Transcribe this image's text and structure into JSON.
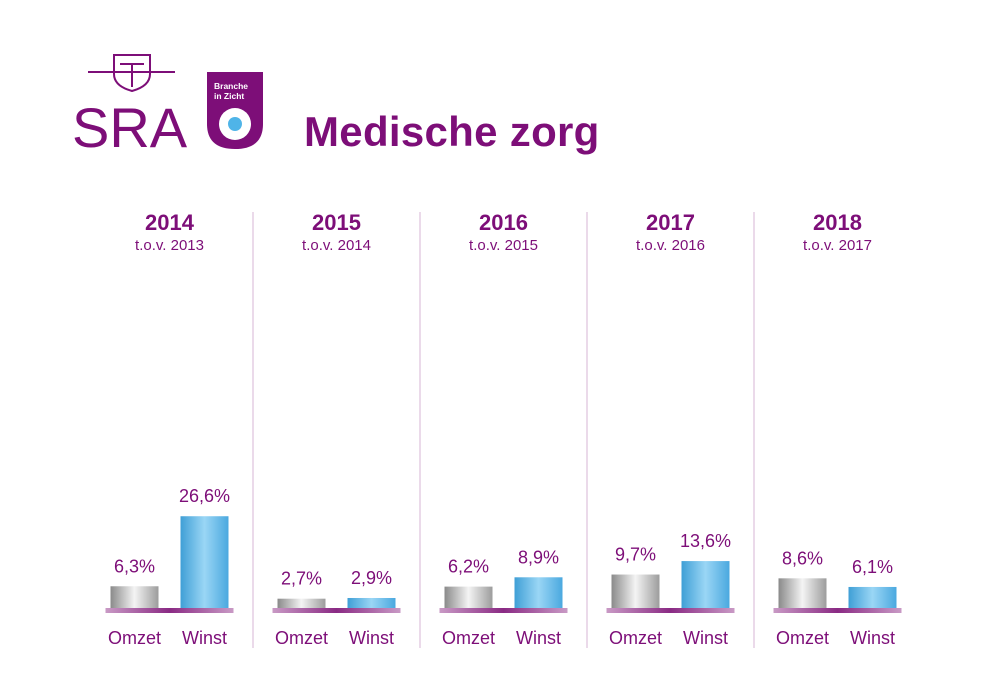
{
  "brand": {
    "name": "SRA",
    "badge_line1": "Branche",
    "badge_line2": "in Zicht",
    "primary_color": "#7d0e78",
    "accent_color": "#4fb4e8"
  },
  "title": "Medische zorg",
  "chart_data": {
    "type": "bar",
    "series_names": [
      "Omzet",
      "Winst"
    ],
    "value_unit": "%",
    "groups": [
      {
        "year": "2014",
        "subtitle": "t.o.v. 2013",
        "values": [
          6.3,
          26.6
        ],
        "labels": [
          "6,3%",
          "26,6%"
        ]
      },
      {
        "year": "2015",
        "subtitle": "t.o.v. 2014",
        "values": [
          2.7,
          2.9
        ],
        "labels": [
          "2,7%",
          "2,9%"
        ]
      },
      {
        "year": "2016",
        "subtitle": "t.o.v. 2015",
        "values": [
          6.2,
          8.9
        ],
        "labels": [
          "6,2%",
          "8,9%"
        ]
      },
      {
        "year": "2017",
        "subtitle": "t.o.v. 2016",
        "values": [
          9.7,
          13.6
        ],
        "labels": [
          "9,7%",
          "13,6%"
        ]
      },
      {
        "year": "2018",
        "subtitle": "t.o.v. 2017",
        "values": [
          8.6,
          6.1
        ],
        "labels": [
          "8,6%",
          "6,1%"
        ]
      }
    ],
    "colors": {
      "omzet": "#c8c8c8",
      "winst": "#5ab8ea",
      "text": "#7d0e78",
      "base": "#b06aa8",
      "divider": "#d7b5d4"
    }
  }
}
